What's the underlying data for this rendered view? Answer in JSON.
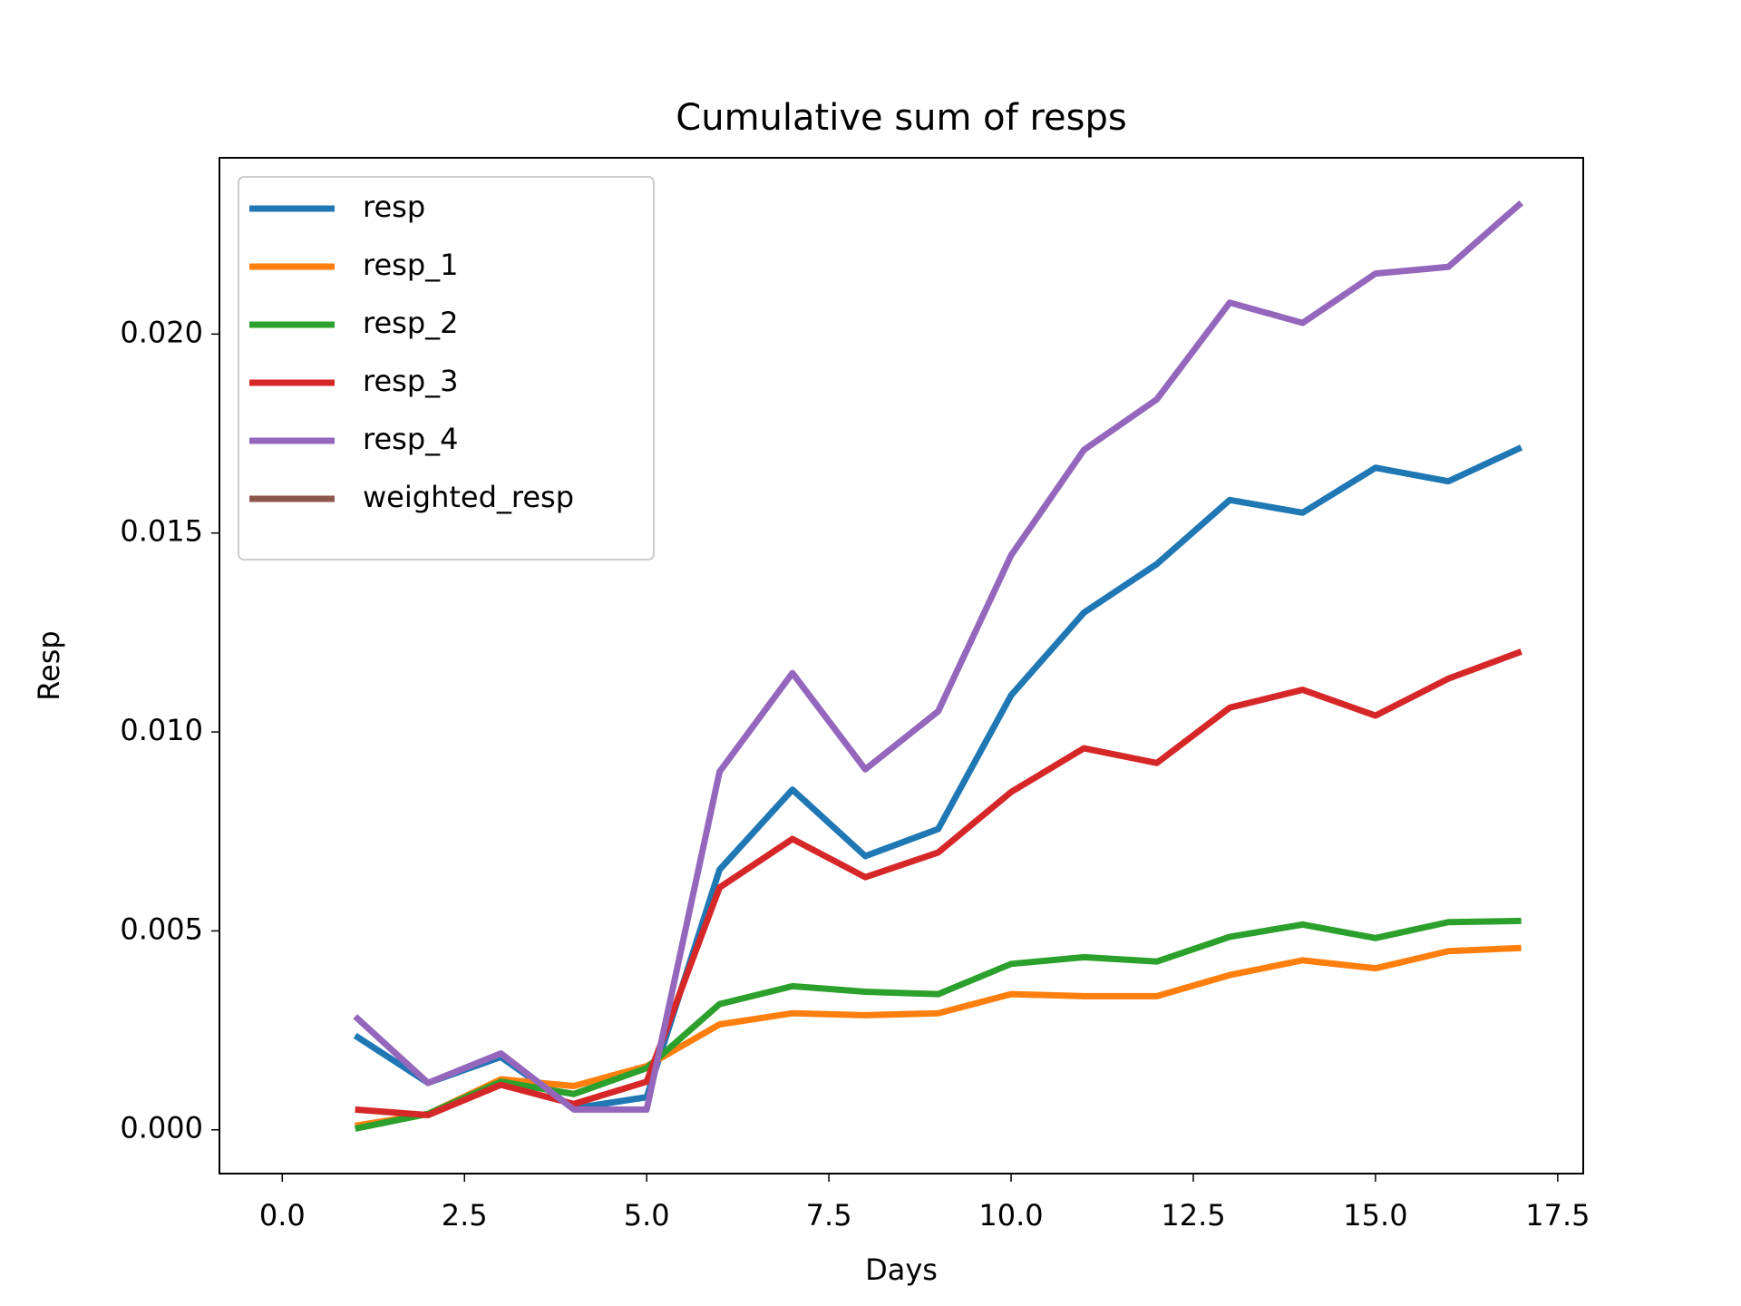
{
  "chart_data": {
    "type": "line",
    "title": "Cumulative sum of resps",
    "xlabel": "Days",
    "ylabel": "Resp",
    "x": [
      1,
      2,
      3,
      4,
      5,
      6,
      7,
      8,
      9,
      10,
      11,
      12,
      13,
      14,
      15,
      16,
      17
    ],
    "series": [
      {
        "name": "resp",
        "color": "#1f77b4",
        "values": [
          0.00237,
          0.00118,
          0.00183,
          0.00054,
          0.00082,
          0.00654,
          0.00855,
          0.00688,
          0.00756,
          0.01092,
          0.013,
          0.01422,
          0.01583,
          0.01551,
          0.01664,
          0.0163,
          0.01715
        ]
      },
      {
        "name": "resp_1",
        "color": "#ff7f0e",
        "values": [
          0.0001,
          0.0004,
          0.00127,
          0.0011,
          0.0016,
          0.00265,
          0.00293,
          0.00288,
          0.00293,
          0.00341,
          0.00336,
          0.00336,
          0.00389,
          0.00426,
          0.00406,
          0.00449,
          0.00457
        ]
      },
      {
        "name": "resp_2",
        "color": "#2ca02c",
        "values": [
          3e-05,
          0.0004,
          0.00121,
          0.0009,
          0.00155,
          0.00316,
          0.00361,
          0.00347,
          0.00341,
          0.00417,
          0.00434,
          0.00423,
          0.00485,
          0.00516,
          0.00482,
          0.00522,
          0.00525
        ]
      },
      {
        "name": "resp_3",
        "color": "#d62728",
        "values": [
          0.00051,
          0.00037,
          0.00113,
          0.00065,
          0.00121,
          0.00609,
          0.00731,
          0.00635,
          0.00697,
          0.00849,
          0.00959,
          0.00922,
          0.01061,
          0.01106,
          0.01041,
          0.01134,
          0.01202
        ]
      },
      {
        "name": "resp_4",
        "color": "#9467bd",
        "values": [
          0.00285,
          0.00118,
          0.00192,
          0.00051,
          0.00051,
          0.009,
          0.01148,
          0.00906,
          0.01052,
          0.01444,
          0.01709,
          0.01836,
          0.02079,
          0.02028,
          0.02152,
          0.02169,
          0.0233
        ]
      },
      {
        "name": "weighted_resp",
        "color": "#8c564b",
        "values": [
          null,
          null,
          null,
          null,
          null,
          null,
          null,
          null,
          null,
          null,
          null,
          null,
          null,
          null,
          null,
          null,
          null
        ]
      }
    ],
    "xlim": [
      -0.862,
      17.85
    ],
    "ylim": [
      -0.0011,
      0.02443
    ],
    "xticks": [
      {
        "value": 0,
        "label": "0.0"
      },
      {
        "value": 2.5,
        "label": "2.5"
      },
      {
        "value": 5,
        "label": "5.0"
      },
      {
        "value": 7.5,
        "label": "7.5"
      },
      {
        "value": 10,
        "label": "10.0"
      },
      {
        "value": 12.5,
        "label": "12.5"
      },
      {
        "value": 15,
        "label": "15.0"
      },
      {
        "value": 17.5,
        "label": "17.5"
      }
    ],
    "yticks": [
      {
        "value": 0,
        "label": "0.000"
      },
      {
        "value": 0.005,
        "label": "0.005"
      },
      {
        "value": 0.01,
        "label": "0.010"
      },
      {
        "value": 0.015,
        "label": "0.015"
      },
      {
        "value": 0.02,
        "label": "0.020"
      }
    ],
    "grid": false,
    "legend": "upper left"
  }
}
